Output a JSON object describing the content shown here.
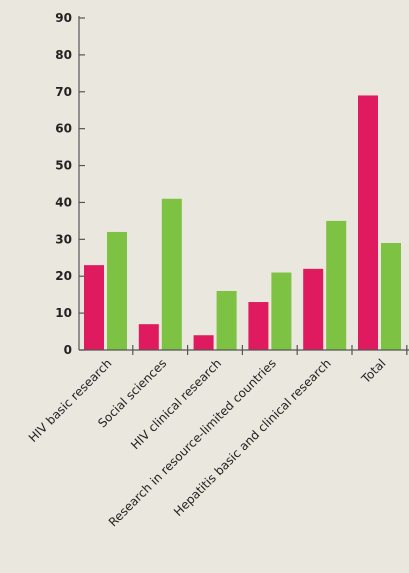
{
  "chart_data": {
    "type": "bar",
    "title": "",
    "xlabel": "",
    "ylabel": "",
    "ylim": [
      0,
      90
    ],
    "yticks": [
      0,
      10,
      20,
      30,
      40,
      50,
      60,
      70,
      80,
      90
    ],
    "grid": false,
    "legend": "none",
    "categories": [
      "HIV basic research",
      "Social sciences",
      "HIV clinical research",
      "Research in resource-limited countries",
      "Hepatitis basic and clinical research",
      "Total"
    ],
    "series": [
      {
        "color": "#df1a5e",
        "values": [
          23,
          7,
          4,
          13,
          22,
          69
        ]
      },
      {
        "color": "#7dc242",
        "values": [
          32,
          41,
          16,
          21,
          35,
          29
        ]
      }
    ],
    "axis_color": "#555555"
  }
}
